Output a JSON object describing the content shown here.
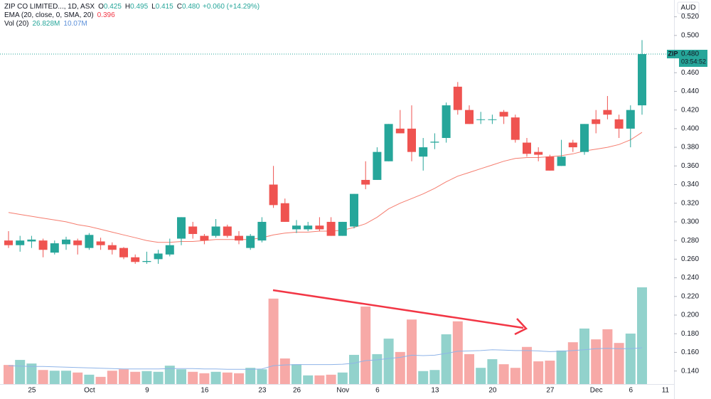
{
  "header": {
    "symbol": "ZIP CO LIMITED..., 1D, ASX",
    "ohlc": [
      {
        "key": "O",
        "value": "0.425"
      },
      {
        "key": "H",
        "value": "0.495"
      },
      {
        "key": "L",
        "value": "0.415"
      },
      {
        "key": "C",
        "value": "0.480"
      }
    ],
    "change": "+0.060 (+14.29%)",
    "ema_label": "EMA (20, close, 0, SMA, 20)",
    "ema_value": "0.396",
    "vol_label": "Vol (20)",
    "vol_value": "26.828M",
    "vol_sma_value": "10.07M"
  },
  "currency": "AUD",
  "price_tag": {
    "symbol": "ZIP",
    "price": "0.480",
    "countdown": "03:54:52"
  },
  "chart_data": {
    "type": "candlestick",
    "categories": [
      null,
      null,
      "25",
      null,
      null,
      null,
      null,
      "Oct",
      null,
      null,
      null,
      null,
      "9",
      null,
      null,
      null,
      null,
      "16",
      null,
      null,
      null,
      null,
      "23",
      null,
      null,
      "26",
      null,
      null,
      null,
      "Nov",
      null,
      null,
      "6",
      null,
      null,
      null,
      null,
      "13",
      null,
      null,
      null,
      null,
      "20",
      null,
      null,
      null,
      null,
      "27",
      null,
      null,
      null,
      "Dec",
      null,
      null,
      "6",
      null
    ],
    "categories_future": [
      null,
      "11"
    ],
    "open": [
      0.28,
      0.275,
      0.279,
      0.28,
      0.267,
      0.276,
      0.28,
      0.272,
      0.279,
      0.275,
      0.272,
      0.262,
      0.257,
      0.26,
      0.265,
      0.282,
      0.295,
      0.285,
      0.285,
      0.295,
      0.285,
      0.272,
      0.28,
      0.34,
      0.32,
      0.292,
      0.292,
      0.296,
      0.3,
      0.285,
      0.295,
      0.345,
      0.345,
      0.365,
      0.4,
      0.4,
      0.37,
      0.385,
      0.39,
      0.445,
      0.42,
      0.41,
      0.41,
      0.418,
      0.412,
      0.385,
      0.375,
      0.37,
      0.36,
      0.385,
      0.375,
      0.41,
      0.42,
      0.41,
      0.4,
      0.425
    ],
    "high": [
      0.29,
      0.285,
      0.285,
      0.282,
      0.28,
      0.284,
      0.282,
      0.288,
      0.283,
      0.278,
      0.273,
      0.265,
      0.268,
      0.27,
      0.282,
      0.305,
      0.3,
      0.287,
      0.303,
      0.297,
      0.29,
      0.287,
      0.305,
      0.36,
      0.325,
      0.302,
      0.3,
      0.305,
      0.305,
      0.3,
      0.33,
      0.365,
      0.38,
      0.405,
      0.42,
      0.425,
      0.39,
      0.395,
      0.428,
      0.45,
      0.425,
      0.418,
      0.415,
      0.42,
      0.415,
      0.39,
      0.38,
      0.372,
      0.388,
      0.388,
      0.405,
      0.42,
      0.435,
      0.415,
      0.425,
      0.495
    ],
    "low": [
      0.272,
      0.268,
      0.272,
      0.262,
      0.265,
      0.27,
      0.265,
      0.27,
      0.27,
      0.265,
      0.26,
      0.255,
      0.255,
      0.255,
      0.263,
      0.275,
      0.282,
      0.276,
      0.283,
      0.283,
      0.276,
      0.27,
      0.278,
      0.315,
      0.3,
      0.288,
      0.29,
      0.29,
      0.285,
      0.285,
      0.293,
      0.335,
      0.345,
      0.365,
      0.395,
      0.365,
      0.355,
      0.378,
      0.385,
      0.415,
      0.405,
      0.405,
      0.405,
      0.405,
      0.385,
      0.37,
      0.365,
      0.355,
      0.36,
      0.375,
      0.372,
      0.395,
      0.41,
      0.39,
      0.38,
      0.415
    ],
    "close": [
      0.275,
      0.28,
      0.281,
      0.27,
      0.277,
      0.281,
      0.275,
      0.286,
      0.275,
      0.27,
      0.262,
      0.257,
      0.258,
      0.266,
      0.275,
      0.305,
      0.287,
      0.28,
      0.295,
      0.285,
      0.28,
      0.285,
      0.3,
      0.318,
      0.3,
      0.296,
      0.296,
      0.292,
      0.285,
      0.3,
      0.33,
      0.34,
      0.375,
      0.405,
      0.395,
      0.375,
      0.38,
      0.386,
      0.425,
      0.42,
      0.405,
      0.41,
      0.41,
      0.413,
      0.388,
      0.373,
      0.372,
      0.355,
      0.37,
      0.38,
      0.405,
      0.405,
      0.415,
      0.4,
      0.42,
      0.48
    ],
    "ema": [
      0.31,
      0.308,
      0.306,
      0.304,
      0.302,
      0.3,
      0.297,
      0.295,
      0.292,
      0.289,
      0.286,
      0.283,
      0.28,
      0.278,
      0.278,
      0.279,
      0.279,
      0.28,
      0.281,
      0.281,
      0.281,
      0.281,
      0.283,
      0.286,
      0.288,
      0.289,
      0.289,
      0.29,
      0.29,
      0.291,
      0.294,
      0.298,
      0.305,
      0.314,
      0.32,
      0.325,
      0.33,
      0.336,
      0.343,
      0.349,
      0.353,
      0.357,
      0.361,
      0.365,
      0.368,
      0.369,
      0.369,
      0.37,
      0.371,
      0.373,
      0.376,
      0.378,
      0.38,
      0.383,
      0.388,
      0.396
    ],
    "volume": [
      5.3,
      6.7,
      5.7,
      3.9,
      3.7,
      3.7,
      3.2,
      2.6,
      2.0,
      3.7,
      4.1,
      3.4,
      3.6,
      3.4,
      5.1,
      4.1,
      3.4,
      3.0,
      3.4,
      3.2,
      3.0,
      4.5,
      4.1,
      23.7,
      7.1,
      5.5,
      2.4,
      2.4,
      2.6,
      3.2,
      8.1,
      21.5,
      8.3,
      12.6,
      8.9,
      17.9,
      3.6,
      3.9,
      13.8,
      17.4,
      8.3,
      4.5,
      6.9,
      5.5,
      4.5,
      10.3,
      6.3,
      6.5,
      9.3,
      11.6,
      15.4,
      12.4,
      15.2,
      11.4,
      14.0,
      26.828
    ],
    "volume_sma": [
      5.1,
      5.0,
      4.9,
      4.9,
      4.8,
      4.7,
      4.6,
      4.5,
      4.4,
      4.3,
      4.2,
      4.2,
      4.2,
      4.2,
      4.3,
      4.3,
      4.3,
      4.2,
      4.2,
      4.1,
      4.1,
      4.1,
      4.2,
      5.1,
      5.3,
      5.4,
      5.4,
      5.4,
      5.4,
      5.5,
      5.8,
      6.5,
      6.7,
      7.1,
      7.4,
      8.0,
      7.9,
      8.0,
      8.5,
      9.1,
      9.2,
      9.3,
      9.5,
      9.4,
      9.3,
      9.3,
      9.2,
      9.0,
      9.1,
      9.3,
      9.5,
      9.8,
      9.9,
      9.8,
      9.8,
      10.07
    ],
    "up_color": "#26a69a",
    "down_color": "#ef5350",
    "ema_color": "#f57c6e",
    "volume_sma_color": "#8fb4e8",
    "ylim": [
      0.126,
      0.538
    ],
    "yticks": [
      {
        "value": 0.14,
        "label": "0.140"
      },
      {
        "value": 0.16,
        "label": "0.160"
      },
      {
        "value": 0.18,
        "label": "0.180"
      },
      {
        "value": 0.2,
        "label": "0.200"
      },
      {
        "value": 0.22,
        "label": "0.220"
      },
      {
        "value": 0.24,
        "label": "0.240"
      },
      {
        "value": 0.26,
        "label": "0.260"
      },
      {
        "value": 0.28,
        "label": "0.280"
      },
      {
        "value": 0.3,
        "label": "0.300"
      },
      {
        "value": 0.32,
        "label": "0.320"
      },
      {
        "value": 0.34,
        "label": "0.340"
      },
      {
        "value": 0.36,
        "label": "0.360"
      },
      {
        "value": 0.38,
        "label": "0.380"
      },
      {
        "value": 0.4,
        "label": "0.400"
      },
      {
        "value": 0.42,
        "label": "0.420"
      },
      {
        "value": 0.44,
        "label": "0.440"
      },
      {
        "value": 0.46,
        "label": "0.460"
      },
      {
        "value": 0.48,
        "label": "0.480"
      },
      {
        "value": 0.5,
        "label": "0.500"
      },
      {
        "value": 0.52,
        "label": "0.520"
      }
    ]
  }
}
